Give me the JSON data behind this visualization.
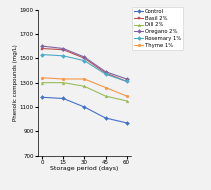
{
  "x": [
    0,
    15,
    30,
    45,
    60
  ],
  "series_order": [
    "Control",
    "Basil 2%",
    "Dill 2%",
    "Oregano 2%",
    "Rosemary 1%",
    "Thyme 1%"
  ],
  "series": {
    "Control": [
      1180,
      1170,
      1100,
      1010,
      970
    ],
    "Basil 2%": [
      1580,
      1570,
      1500,
      1380,
      1310
    ],
    "Dill 2%": [
      1300,
      1300,
      1270,
      1190,
      1150
    ],
    "Oregano 2%": [
      1600,
      1580,
      1510,
      1390,
      1330
    ],
    "Rosemary 1%": [
      1530,
      1520,
      1480,
      1370,
      1310
    ],
    "Thyme 1%": [
      1340,
      1330,
      1330,
      1260,
      1190
    ]
  },
  "colors": {
    "Control": "#4472C4",
    "Basil 2%": "#C0504D",
    "Dill 2%": "#9BBB59",
    "Oregano 2%": "#8064A2",
    "Rosemary 1%": "#4BACC6",
    "Thyme 1%": "#F79646"
  },
  "markers": {
    "Control": "D",
    "Basil 2%": "s",
    "Dill 2%": "^",
    "Oregano 2%": "D",
    "Rosemary 1%": "D",
    "Thyme 1%": "o"
  },
  "ylabel": "Phenolic compounds (mg/L)",
  "xlabel": "Storage period (days)",
  "ylim": [
    700,
    1900
  ],
  "yticks": [
    700,
    900,
    1100,
    1300,
    1500,
    1700,
    1900
  ],
  "xticks": [
    0,
    15,
    30,
    45,
    60
  ],
  "bg_color": "#f2f2f2"
}
